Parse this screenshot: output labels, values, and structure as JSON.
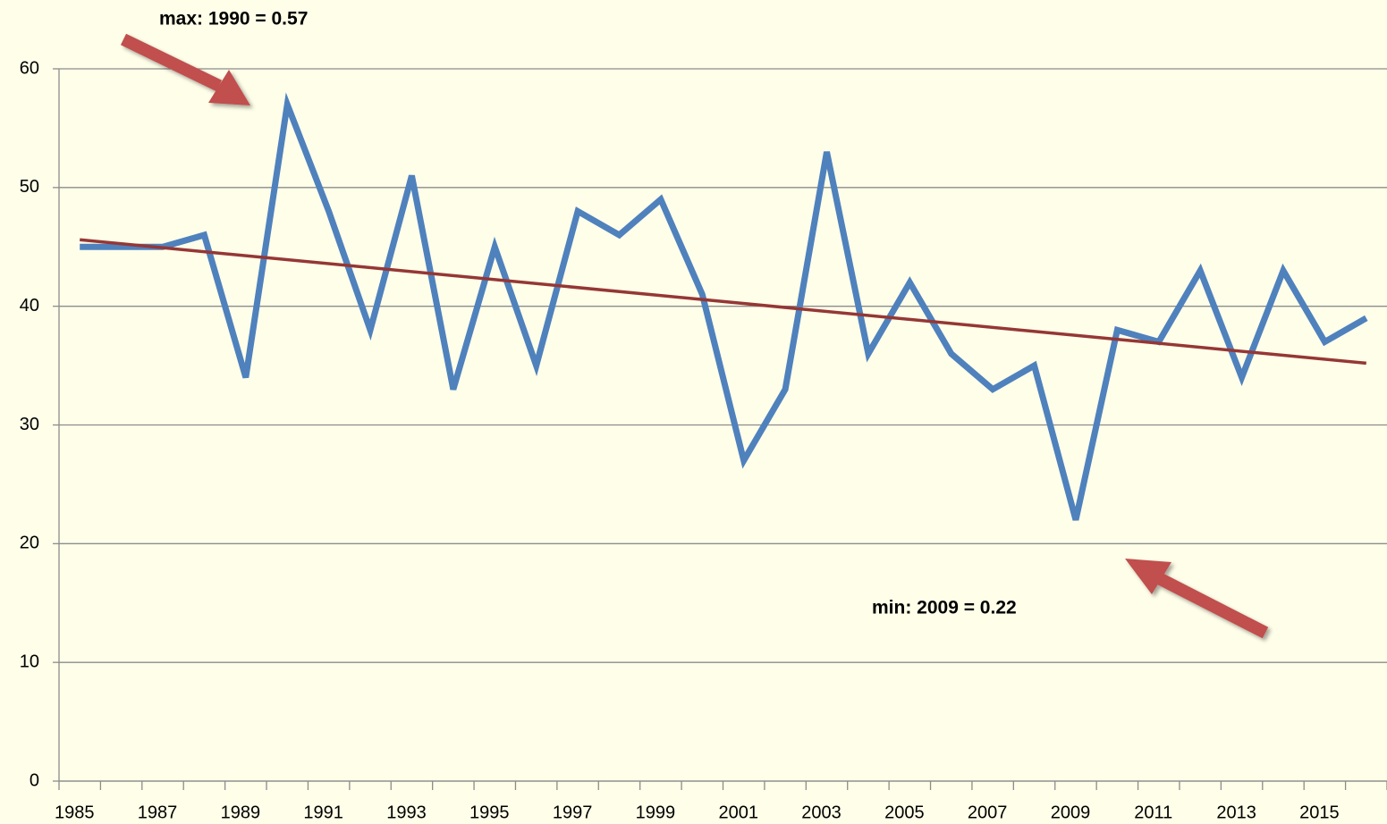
{
  "chart_data": {
    "type": "line",
    "categories": [
      "1985",
      null,
      "1987",
      null,
      "1989",
      null,
      "1991",
      null,
      "1993",
      null,
      "1995",
      null,
      "1997",
      null,
      "1999",
      null,
      "2001",
      null,
      "2003",
      null,
      "2005",
      null,
      "2007",
      null,
      "2009",
      null,
      "2011",
      null,
      "2013",
      null,
      "2015",
      null
    ],
    "series": [
      {
        "color": "#4f81bd",
        "values": [
          45,
          45,
          45,
          46,
          34,
          57,
          48,
          38,
          51,
          33,
          45,
          35,
          48,
          46,
          49,
          41,
          27,
          33,
          53,
          36,
          42,
          36,
          33,
          35,
          22,
          38,
          37,
          43,
          34,
          43,
          37,
          39
        ]
      }
    ],
    "trendline": {
      "color": "#953735",
      "values": [
        45.6,
        35.2
      ]
    },
    "ylim": [
      0,
      60
    ],
    "yticks": [
      0,
      10,
      20,
      30,
      40,
      50,
      60
    ],
    "grid": true,
    "annotations": [
      "max: 1990 = 0.57",
      "min: 2009 = 0.22"
    ]
  }
}
